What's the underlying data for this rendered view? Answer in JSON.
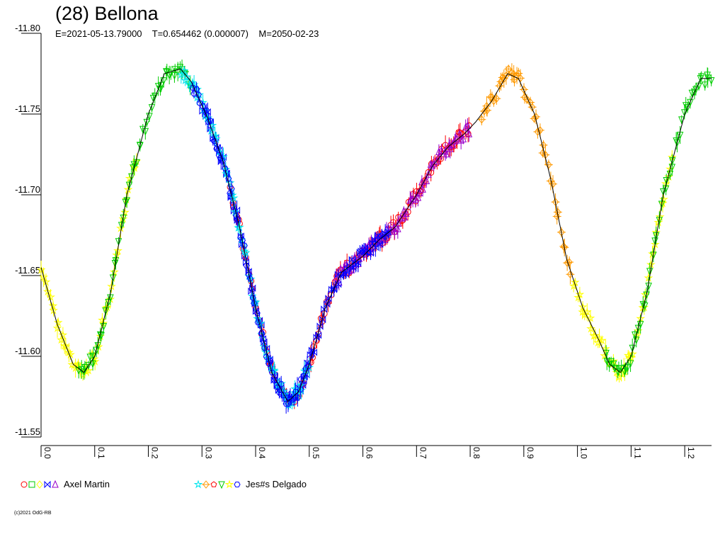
{
  "header": {
    "title": "(28) Bellona",
    "subtitle": "E=2021-05-13.79000    T=0.654462 (0.000007)    M=2050-02-23"
  },
  "legend": [
    {
      "name": "Axel Martin",
      "markers": [
        "circle",
        "square",
        "diamond",
        "bowtie",
        "triangle-up"
      ],
      "marker_colors": [
        "#ff0000",
        "#00cc00",
        "#ffff00",
        "#0000ff",
        "#9900cc"
      ]
    },
    {
      "name": "Jes#s Delgado",
      "markers": [
        "star",
        "cross-diamond",
        "pentagon",
        "triangle-down",
        "star",
        "hexagon"
      ],
      "marker_colors": [
        "#00e5ee",
        "#ff9900",
        "#ff0000",
        "#00cc00",
        "#ffff00",
        "#0000ff"
      ]
    }
  ],
  "copyright": "(c)2021 OdG-RB",
  "chart_data": {
    "type": "scatter",
    "title": "(28) Bellona",
    "subtitle": "E=2021-05-13.79000    T=0.654462 (0.000007)    M=2050-02-23",
    "xlabel": "",
    "ylabel": "",
    "xlim": [
      0.0,
      1.25
    ],
    "ylim": [
      -11.8,
      -11.55
    ],
    "y_inverted": true,
    "grid": false,
    "x_ticks": [
      "0.0",
      "0.1",
      "0.2",
      "0.3",
      "0.4",
      "0.5",
      "0.6",
      "0.7",
      "0.8",
      "0.9",
      "1.0",
      "1.1",
      "1.2"
    ],
    "y_ticks": [
      "-11.80",
      "-11.75",
      "-11.70",
      "-11.65",
      "-11.60",
      "-11.55"
    ],
    "curve_color": "#000000",
    "curve": {
      "phase": [
        0.0,
        0.03,
        0.06,
        0.08,
        0.1,
        0.13,
        0.16,
        0.2,
        0.23,
        0.26,
        0.28,
        0.31,
        0.34,
        0.37,
        0.4,
        0.43,
        0.46,
        0.48,
        0.5,
        0.53,
        0.56,
        0.6,
        0.63,
        0.66,
        0.7,
        0.73,
        0.76,
        0.79,
        0.81,
        0.84,
        0.87,
        0.89,
        0.92,
        0.95,
        0.98,
        1.01,
        1.04,
        1.06,
        1.08,
        1.1,
        1.13,
        1.16,
        1.2,
        1.23,
        1.25
      ],
      "mag": [
        -11.655,
        -11.62,
        -11.595,
        -11.59,
        -11.6,
        -11.64,
        -11.7,
        -11.75,
        -11.775,
        -11.778,
        -11.77,
        -11.748,
        -11.72,
        -11.68,
        -11.63,
        -11.59,
        -11.572,
        -11.578,
        -11.595,
        -11.63,
        -11.652,
        -11.662,
        -11.672,
        -11.68,
        -11.7,
        -11.718,
        -11.73,
        -11.738,
        -11.745,
        -11.758,
        -11.775,
        -11.772,
        -11.75,
        -11.71,
        -11.66,
        -11.63,
        -11.61,
        -11.595,
        -11.59,
        -11.6,
        -11.64,
        -11.7,
        -11.75,
        -11.772,
        -11.772
      ]
    },
    "series": [
      {
        "name": "Axel Martin",
        "color": "#ff0000",
        "marker": "circle",
        "phase_range": [
          0.35,
          0.8
        ]
      },
      {
        "name": "Axel Martin",
        "color": "#9900cc",
        "marker": "triangle-up",
        "phase_range": [
          0.55,
          0.8
        ]
      },
      {
        "name": "Axel Martin",
        "color": "#0000ff",
        "marker": "bowtie",
        "phase_range": [
          0.3,
          0.65
        ]
      },
      {
        "name": "Jes#s Delgado",
        "color": "#ffff00",
        "marker": "star",
        "phase_range": [
          0.0,
          0.18
        ]
      },
      {
        "name": "Jes#s Delgado",
        "color": "#00cc00",
        "marker": "triangle-down",
        "phase_range": [
          0.07,
          0.28
        ]
      },
      {
        "name": "Jes#s Delgado",
        "color": "#00e5ee",
        "marker": "star",
        "phase_range": [
          0.26,
          0.5
        ]
      },
      {
        "name": "Jes#s Delgado",
        "color": "#0000ff",
        "marker": "hexagon",
        "phase_range": [
          0.28,
          0.5
        ]
      },
      {
        "name": "Jes#s Delgado",
        "color": "#ff9900",
        "marker": "cross-diamond",
        "phase_range": [
          0.82,
          0.99
        ]
      },
      {
        "name": "Jes#s Delgado",
        "color": "#ffff00",
        "marker": "star",
        "phase_range": [
          0.99,
          1.18
        ]
      },
      {
        "name": "Jes#s Delgado",
        "color": "#00cc00",
        "marker": "triangle-down",
        "phase_range": [
          1.05,
          1.25
        ]
      }
    ]
  }
}
